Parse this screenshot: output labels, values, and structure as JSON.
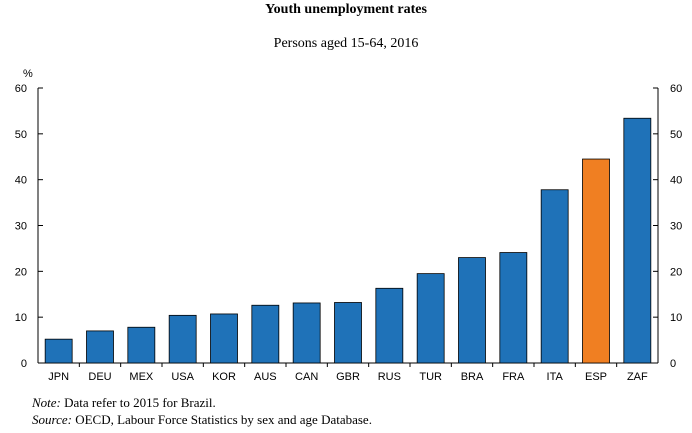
{
  "chart_data": {
    "type": "bar",
    "title": "Youth unemployment rates",
    "subtitle": "Persons aged 15-64, 2016",
    "unit": "%",
    "categories": [
      "JPN",
      "DEU",
      "MEX",
      "USA",
      "KOR",
      "AUS",
      "CAN",
      "GBR",
      "RUS",
      "TUR",
      "BRA",
      "FRA",
      "ITA",
      "ESP",
      "ZAF"
    ],
    "values": [
      5.2,
      7.0,
      7.8,
      10.4,
      10.7,
      12.6,
      13.1,
      13.2,
      16.3,
      19.5,
      23.0,
      24.1,
      37.8,
      44.5,
      53.4
    ],
    "highlight": "ESP",
    "colors": {
      "default": "#1f72b8",
      "highlight": "#f07f22"
    },
    "ylim": [
      0,
      60
    ],
    "yticks": [
      0,
      10,
      20,
      30,
      40,
      50,
      60
    ],
    "grid": false,
    "legend": "none"
  },
  "notes": {
    "note_label": "Note:",
    "note_text": "Data refer to 2015 for Brazil.",
    "source_label": "Source:",
    "source_text": "OECD, Labour Force Statistics by sex and age Database."
  }
}
